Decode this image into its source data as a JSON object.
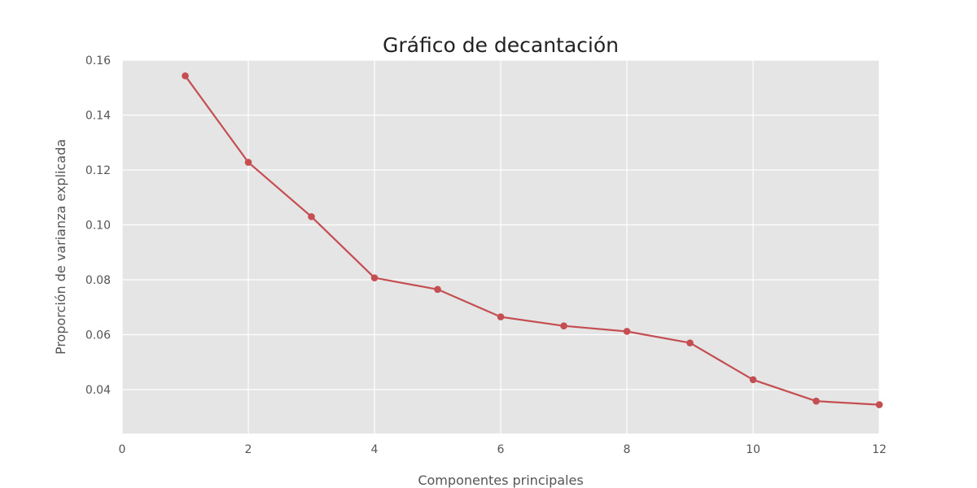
{
  "chart_data": {
    "type": "line",
    "title": "Gráfico de decantación",
    "xlabel": "Componentes principales",
    "ylabel": "Proporción de varianza explicada",
    "xlim": [
      0,
      12
    ],
    "ylim": [
      0.024,
      0.16
    ],
    "grid": true,
    "x_ticks": [
      0,
      2,
      4,
      6,
      8,
      10,
      12
    ],
    "x_tick_labels": [
      "0",
      "2",
      "4",
      "6",
      "8",
      "10",
      "12"
    ],
    "y_ticks": [
      0.04,
      0.06,
      0.08,
      0.1,
      0.12,
      0.14,
      0.16
    ],
    "y_tick_labels": [
      "0.04",
      "0.06",
      "0.08",
      "0.10",
      "0.12",
      "0.14",
      "0.16"
    ],
    "series": [
      {
        "x": [
          1,
          2,
          3,
          4,
          5,
          6,
          7,
          8,
          9,
          10,
          11,
          12
        ],
        "values": [
          0.1543,
          0.1228,
          0.103,
          0.0807,
          0.0765,
          0.0665,
          0.0632,
          0.0612,
          0.057,
          0.0436,
          0.0358,
          0.0345
        ]
      }
    ],
    "colors": {
      "plot_background": "#e5e5e5",
      "grid": "#ffffff",
      "line": "#c44e52"
    }
  }
}
